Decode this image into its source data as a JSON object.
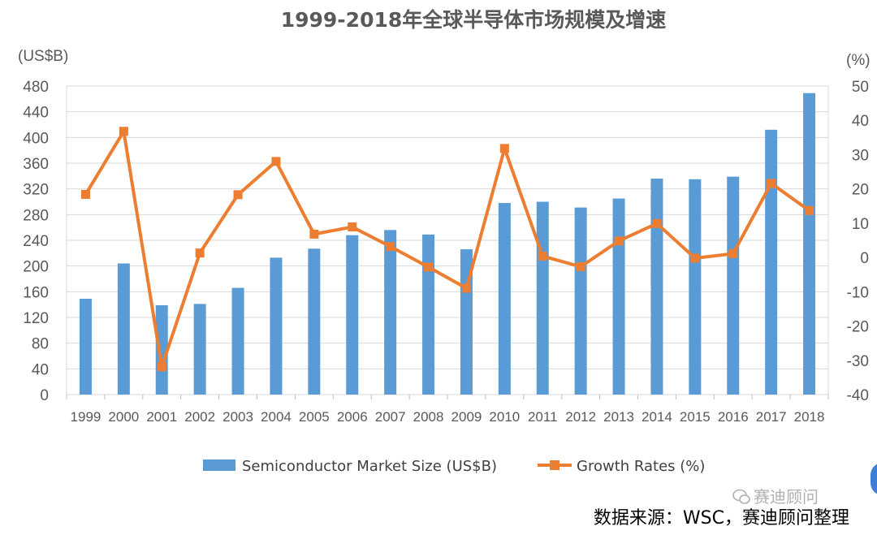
{
  "chart_data": {
    "type": "bar+line",
    "title": "1999-2018年全球半导体市场规模及增速",
    "y_left_unit": "(US$B)",
    "y_right_unit": "(%)",
    "categories": [
      "1999",
      "2000",
      "2001",
      "2002",
      "2003",
      "2004",
      "2005",
      "2006",
      "2007",
      "2008",
      "2009",
      "2010",
      "2011",
      "2012",
      "2013",
      "2014",
      "2015",
      "2016",
      "2017",
      "2018"
    ],
    "y_left_ticks": [
      "0",
      "40",
      "80",
      "120",
      "160",
      "200",
      "240",
      "280",
      "320",
      "360",
      "400",
      "440",
      "480"
    ],
    "y_right_ticks": [
      "-40",
      "-30",
      "-20",
      "-10",
      "0",
      "10",
      "20",
      "30",
      "40",
      "50"
    ],
    "y_left_range": [
      0,
      480
    ],
    "y_right_range": [
      -40,
      50
    ],
    "series": [
      {
        "name": "Semiconductor Market Size (US$B)",
        "kind": "bar",
        "axis": "left",
        "color": "#5b9bd5",
        "values": [
          149,
          204,
          139,
          141,
          166,
          213,
          227,
          248,
          256,
          249,
          226,
          298,
          300,
          291,
          305,
          336,
          335,
          339,
          412,
          469
        ]
      },
      {
        "name": "Growth Rates (%)",
        "kind": "line",
        "axis": "right",
        "color": "#ed7d31",
        "values": [
          18.4,
          36.8,
          -31.9,
          1.3,
          18.3,
          28.0,
          6.8,
          8.9,
          3.2,
          -2.8,
          -9.0,
          31.8,
          0.4,
          -2.7,
          4.8,
          9.9,
          -0.2,
          1.1,
          21.6,
          13.7
        ]
      }
    ],
    "grid": "horizontal",
    "legend": "bottom-center"
  },
  "source_note": "数据来源：WSC，赛迪顾问整理",
  "watermark": "赛迪顾问"
}
